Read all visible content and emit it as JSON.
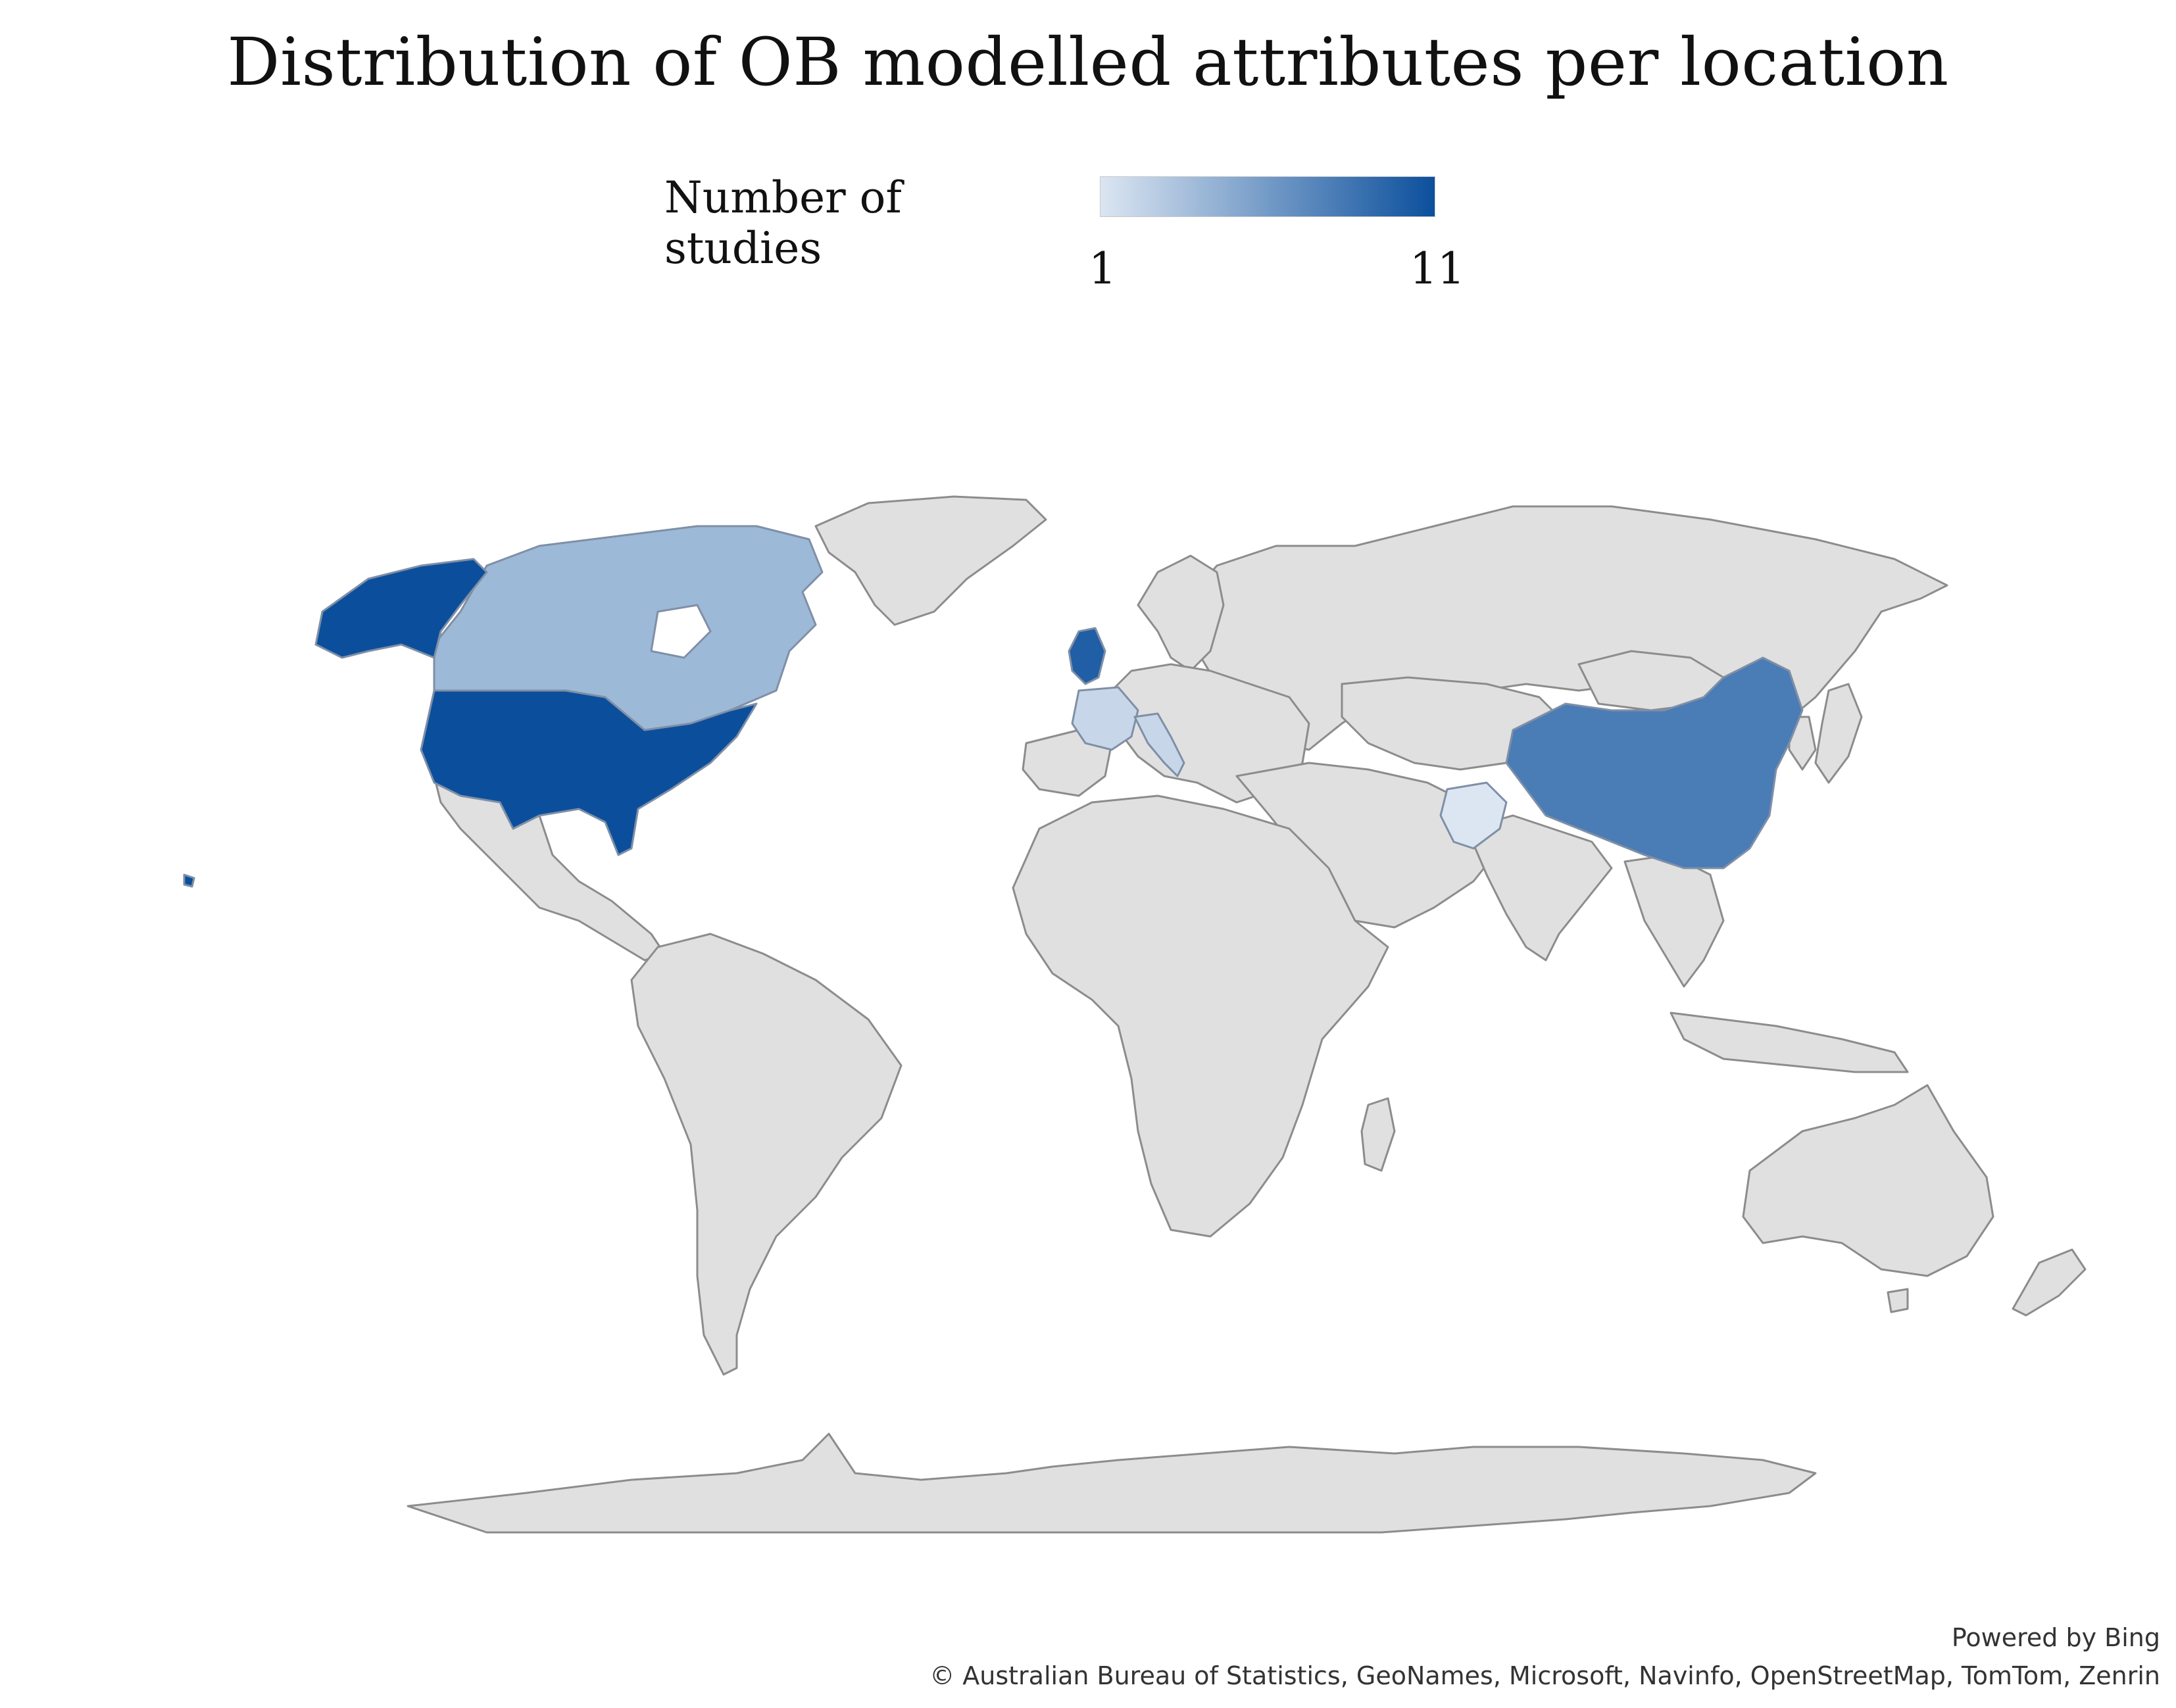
{
  "map": {
    "title": "Distribution of OB modelled attributes per location",
    "legend": {
      "label": "Number of studies",
      "min": "1",
      "max": "11",
      "color_low": "#dce6f2",
      "color_high": "#0b4f9c"
    },
    "colors": {
      "land_default": "#e0e0e0",
      "border": "#8c8c8c",
      "background": "#ffffff"
    },
    "powered_by": "Powered by Bing",
    "attribution": "© Australian Bureau of Statistics, GeoNames, Microsoft, Navinfo, OpenStreetMap, TomTom, Zenrin"
  },
  "chart_data": {
    "type": "choropleth",
    "value_range": [
      1,
      11
    ],
    "regions": [
      {
        "name": "United States",
        "value": 11
      },
      {
        "name": "United Kingdom",
        "value": 10
      },
      {
        "name": "China",
        "value": 8
      },
      {
        "name": "Canada",
        "value": 4
      },
      {
        "name": "France",
        "value": 2
      },
      {
        "name": "Italy",
        "value": 2
      },
      {
        "name": "Pakistan",
        "value": 1
      }
    ]
  }
}
